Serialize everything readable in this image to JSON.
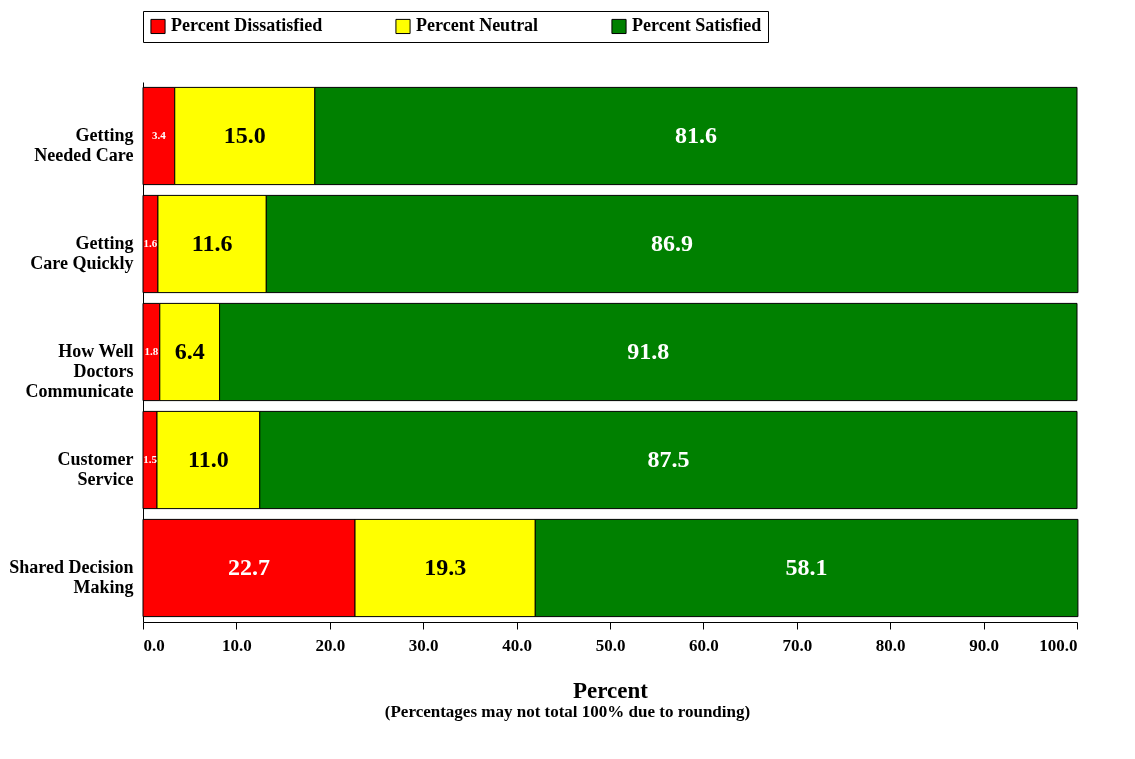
{
  "chart_data": {
    "type": "bar",
    "orientation": "horizontal",
    "stacked": true,
    "legend": "top",
    "grid": false,
    "xlabel": "Percent",
    "annotations": [
      "(Percentages may not total 100% due to rounding)"
    ],
    "categories": [
      "Getting\nNeeded Care",
      "Getting\nCare Quickly",
      "How Well\nDoctors\nCommunicate",
      "Customer\nService",
      "Shared Decision\nMaking"
    ],
    "xlim": [
      0,
      100
    ],
    "xticks": [
      {
        "value": 0,
        "label": "0.0"
      },
      {
        "value": 10,
        "label": "10.0"
      },
      {
        "value": 20,
        "label": "20.0"
      },
      {
        "value": 30,
        "label": "30.0"
      },
      {
        "value": 40,
        "label": "40.0"
      },
      {
        "value": 50,
        "label": "50.0"
      },
      {
        "value": 60,
        "label": "60.0"
      },
      {
        "value": 70,
        "label": "70.0"
      },
      {
        "value": 80,
        "label": "80.0"
      },
      {
        "value": 90,
        "label": "90.0"
      },
      {
        "value": 100,
        "label": "100.0"
      }
    ],
    "series": [
      {
        "name": "Percent Dissatisfied",
        "color": "#ff0000",
        "values": [
          3.4,
          1.6,
          1.8,
          1.5,
          22.7
        ],
        "value_labels": [
          "3.4",
          "1.6",
          "1.8",
          "1.5",
          "22.7"
        ]
      },
      {
        "name": "Percent Neutral",
        "color": "#ffff00",
        "values": [
          15.0,
          11.6,
          6.4,
          11.0,
          19.3
        ],
        "value_labels": [
          "15.0",
          "11.6",
          "6.4",
          "11.0",
          "19.3"
        ]
      },
      {
        "name": "Percent Satisfied",
        "color": "#008000",
        "values": [
          81.6,
          86.9,
          91.8,
          87.5,
          58.1
        ],
        "value_labels": [
          "81.6",
          "86.9",
          "91.8",
          "87.5",
          "58.1"
        ]
      }
    ]
  }
}
